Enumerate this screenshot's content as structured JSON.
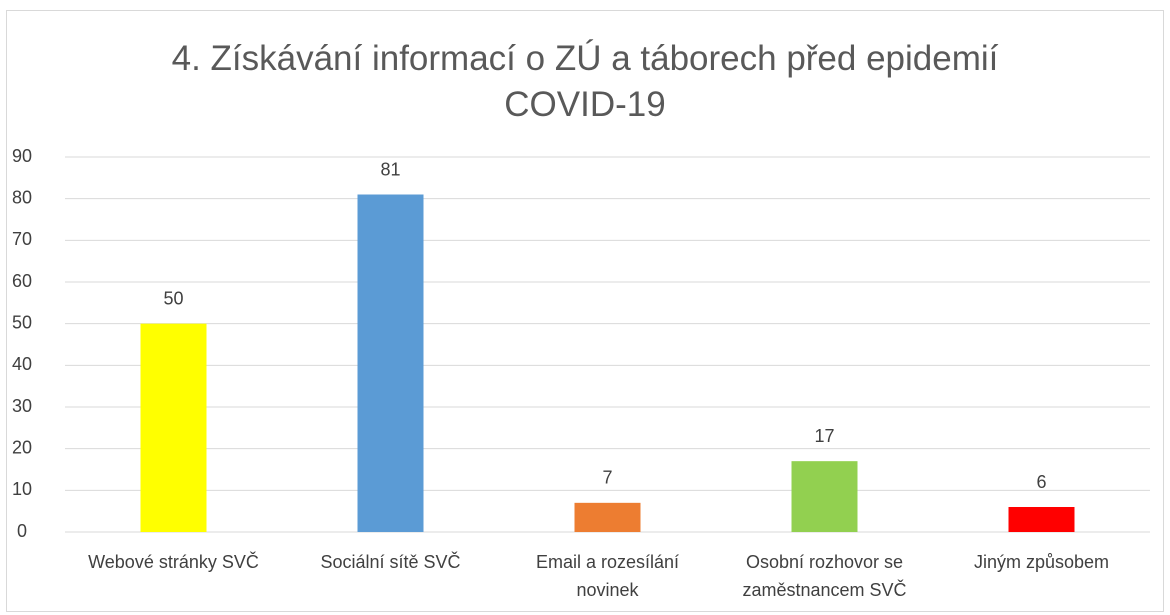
{
  "chart_data": {
    "type": "bar",
    "title": "4. Získávání informací o ZÚ a táborech před epidemií COVID-19",
    "categories": [
      "Webové stránky SVČ",
      "Sociální sítě SVČ",
      "Email a rozesílání novinek",
      "Osobní rozhovor se zaměstnancem SVČ",
      "Jiným způsobem"
    ],
    "values": [
      50,
      81,
      7,
      17,
      6
    ],
    "colors": [
      "#ffff00",
      "#5b9bd5",
      "#ed7d31",
      "#92d050",
      "#ff0000"
    ],
    "ylim": [
      0,
      90
    ],
    "yticks": [
      0,
      10,
      20,
      30,
      40,
      50,
      60,
      70,
      80,
      90
    ],
    "grid": true
  }
}
